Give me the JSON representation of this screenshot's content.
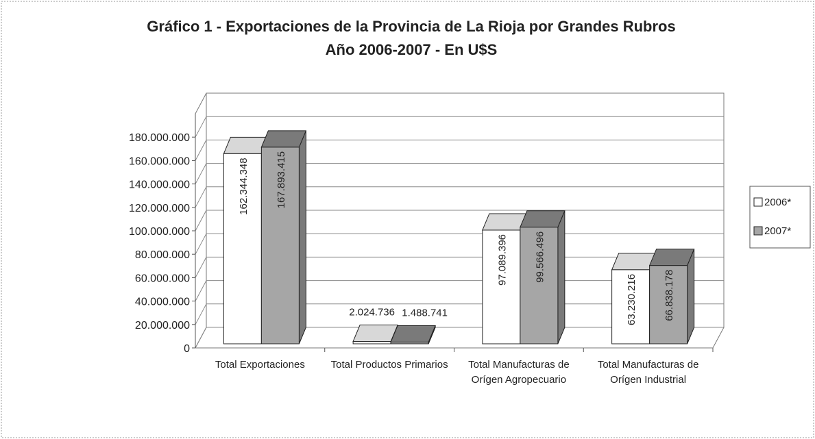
{
  "chart_data": {
    "type": "bar3d",
    "title": "Gráfico 1 - Exportaciones de la Provincia de La Rioja por Grandes Rubros Año 2006-2007 - En U$S",
    "categories": [
      "Total Exportaciones",
      "Total Productos Primarios",
      "Total Manufacturas de Orígen Agropecuario",
      "Total Manufacturas de Orígen Industrial"
    ],
    "series": [
      {
        "name": "2006*",
        "color": "#ffffff",
        "values": [
          162344348,
          2024736,
          97089396,
          63230216
        ],
        "value_labels": [
          "162.344.348",
          "2.024.736",
          "97.089.396",
          "63.230.216"
        ]
      },
      {
        "name": "2007*",
        "color": "#a6a6a6",
        "values": [
          167893415,
          1488741,
          99566496,
          66838178
        ],
        "value_labels": [
          "167.893.415",
          "1.488.741",
          "99.566.496",
          "66.838.178"
        ]
      }
    ],
    "ylim": [
      0,
      200000000
    ],
    "yticks": [
      0,
      {
        "value": 20000000,
        "label": "20.000.000"
      },
      {
        "value": 40000000,
        "label": "40.000.000"
      },
      {
        "value": 60000000,
        "label": "60.000.000"
      },
      {
        "value": 80000000,
        "label": "80.000.000"
      },
      {
        "value": 100000000,
        "label": "100.000.000"
      },
      {
        "value": 120000000,
        "label": "120.000.000"
      },
      {
        "value": 140000000,
        "label": "140.000.000"
      },
      {
        "value": 160000000,
        "label": "160.000.000"
      },
      {
        "value": 180000000,
        "label": "180.000.000"
      }
    ],
    "grid": true,
    "legend": "right"
  }
}
